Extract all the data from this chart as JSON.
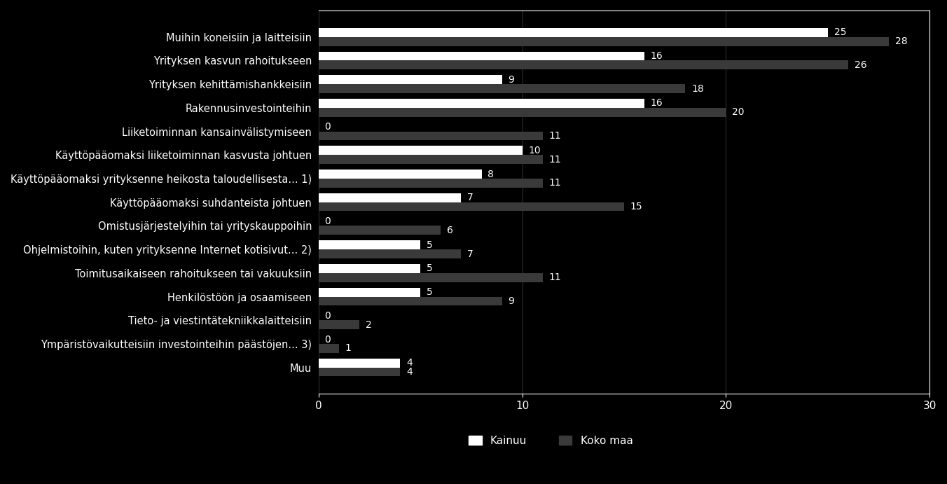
{
  "categories": [
    "Muihin koneisiin ja laitteisiin",
    "Yrityksen kasvun rahoitukseen",
    "Yrityksen kehittämishankkeisiin",
    "Rakennusinvestointeihin",
    "Liiketoiminnan kansainvälistymiseen",
    "Käyttöpääomaksi liiketoiminnan kasvusta johtuen",
    "Käyttöpääomaksi yrityksenne heikosta taloudellisesta... 1)",
    "Käyttöpääomaksi suhdanteista johtuen",
    "Omistusjärjestelyihin tai yrityskauppoihin",
    "Ohjelmistoihin, kuten yrityksenne Internet kotisivut... 2)",
    "Toimitusaikaiseen rahoitukseen tai vakuuksiin",
    "Henkilöstöön ja osaamiseen",
    "Tieto- ja viestintätekniikkalaitteisiin",
    "Ympäristövaikutteisiin investointeihin päästöjen... 3)",
    "Muu"
  ],
  "kainuu": [
    25,
    16,
    9,
    16,
    0,
    10,
    8,
    7,
    0,
    5,
    5,
    5,
    0,
    0,
    4
  ],
  "koko_maa": [
    28,
    26,
    18,
    20,
    11,
    11,
    11,
    15,
    6,
    7,
    11,
    9,
    2,
    1,
    4
  ],
  "color_kainuu": "#ffffff",
  "color_koko_maa": "#3a3a3a",
  "background_color": "#000000",
  "plot_bg_color": "#000000",
  "text_color": "#ffffff",
  "bar_height": 0.38,
  "xlim": [
    0,
    30
  ],
  "xticks": [
    0,
    10,
    20,
    30
  ],
  "legend_kainuu": "Kainuu",
  "legend_koko_maa": "Koko maa",
  "label_fontsize": 10.5,
  "tick_fontsize": 11,
  "legend_fontsize": 11,
  "value_fontsize": 10
}
